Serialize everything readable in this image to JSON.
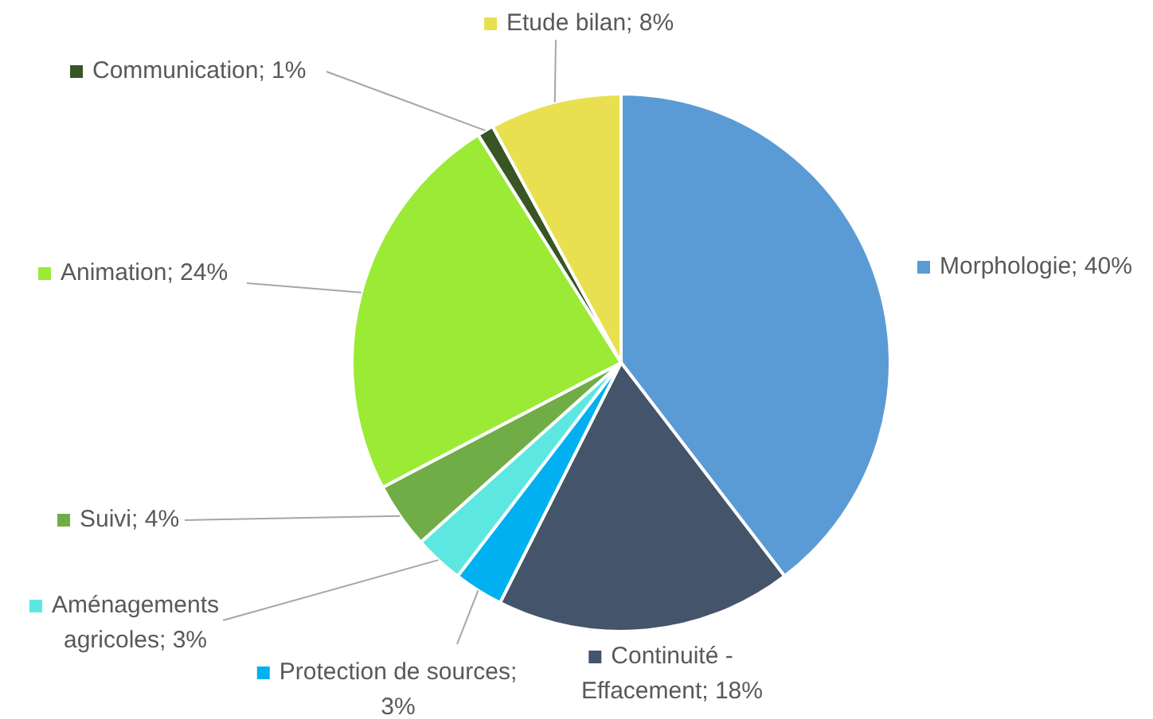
{
  "chart_data": {
    "type": "pie",
    "categories": [
      "Morphologie; 40%",
      "Continuité - Effacement; 18%",
      "Protection de sources; 3%",
      "Aménagements agricoles; 3%",
      "Suivi; 4%",
      "Animation; 24%",
      "Communication; 1%",
      "Etude bilan; 8%"
    ],
    "values": [
      40,
      18,
      3,
      3,
      4,
      24,
      1,
      8
    ],
    "colors": [
      "#5b9bd5",
      "#44546a",
      "#00b0f0",
      "#5ce8e0",
      "#70ad47",
      "#9bea36",
      "#375623",
      "#e8e050"
    ],
    "legend": "left"
  }
}
